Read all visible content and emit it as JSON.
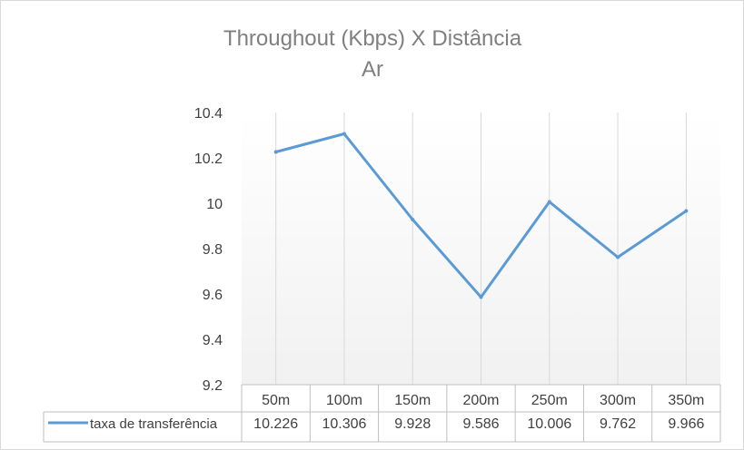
{
  "chart_data": {
    "type": "line",
    "title": "Throughout  (Kbps) X Distância",
    "subtitle": "Ar",
    "categories": [
      "50m",
      "100m",
      "150m",
      "200m",
      "250m",
      "300m",
      "350m"
    ],
    "series": [
      {
        "name": "taxa de transferência",
        "values": [
          10.226,
          10.306,
          9.928,
          9.586,
          10.006,
          9.762,
          9.966
        ],
        "labels": [
          "10.226",
          "10.306",
          "9.928",
          "9.586",
          "10.006",
          "9.762",
          "9.966"
        ],
        "color": "#5b9bd5"
      }
    ],
    "ylim": [
      9.2,
      10.4
    ],
    "yticks": [
      "9.2",
      "9.4",
      "9.6",
      "9.8",
      "10",
      "10.2",
      "10.4"
    ],
    "grid": "vertical",
    "data_table": true,
    "legend": "data-table"
  }
}
